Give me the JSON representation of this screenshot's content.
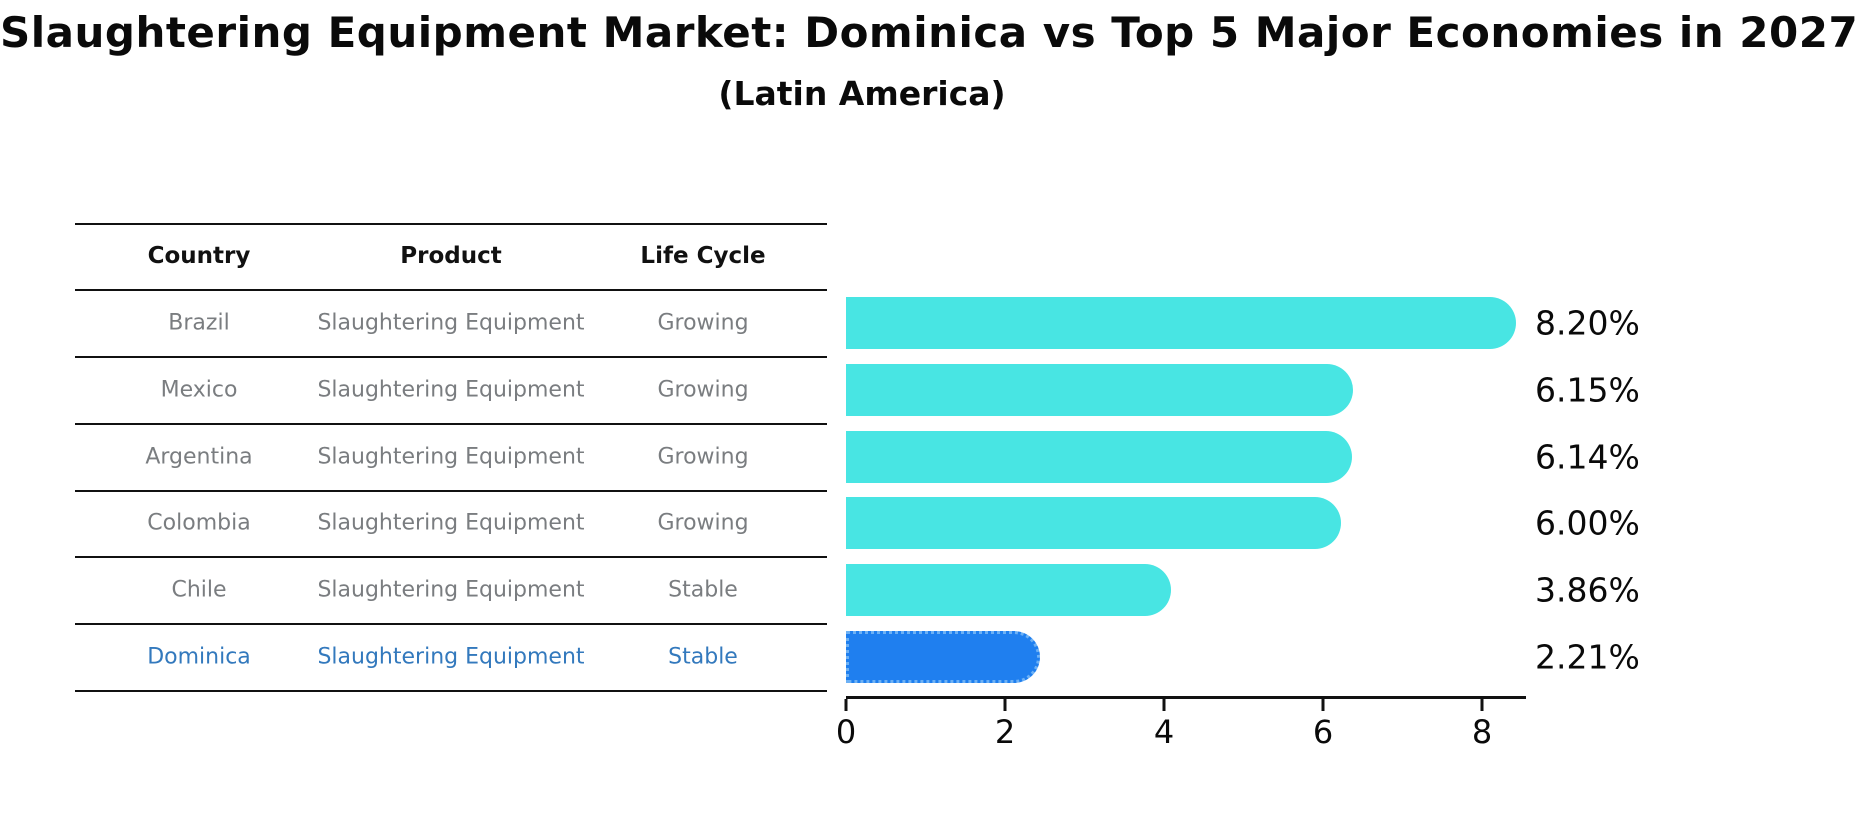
{
  "title": "Slaughtering Equipment Market: Dominica vs Top 5 Major Economies in 2027",
  "subtitle": "(Latin America)",
  "colors": {
    "bar": "#48e5e3",
    "highlight_bar": "#1f7fef",
    "highlight_border": "#6db1f5",
    "highlight_text": "#3379bd",
    "table_text": "#7a7d80",
    "header_text": "#111111",
    "axis": "#111111"
  },
  "table": {
    "columns": [
      "Country",
      "Product",
      "Life Cycle"
    ],
    "rows": [
      {
        "country": "Brazil",
        "product": "Slaughtering Equipment",
        "life_cycle": "Growing",
        "highlighted": false
      },
      {
        "country": "Mexico",
        "product": "Slaughtering Equipment",
        "life_cycle": "Growing",
        "highlighted": false
      },
      {
        "country": "Argentina",
        "product": "Slaughtering Equipment",
        "life_cycle": "Growing",
        "highlighted": false
      },
      {
        "country": "Colombia",
        "product": "Slaughtering Equipment",
        "life_cycle": "Growing",
        "highlighted": false
      },
      {
        "country": "Chile",
        "product": "Slaughtering Equipment",
        "life_cycle": "Stable",
        "highlighted": false
      },
      {
        "country": "Dominica",
        "product": "Slaughtering Equipment",
        "life_cycle": "Stable",
        "highlighted": true
      }
    ]
  },
  "chart_data": {
    "type": "bar",
    "orientation": "horizontal",
    "title": "Slaughtering Equipment Market: Dominica vs Top 5 Major Economies in 2027 (Latin America)",
    "categories": [
      "Brazil",
      "Mexico",
      "Argentina",
      "Colombia",
      "Chile",
      "Dominica"
    ],
    "values": [
      8.2,
      6.15,
      6.14,
      6.0,
      3.86,
      2.21
    ],
    "value_labels": [
      "8.20%",
      "6.15%",
      "6.14%",
      "6.00%",
      "3.86%",
      "2.21%"
    ],
    "xlabel": "",
    "ylabel": "",
    "xlim": [
      0,
      8.55
    ],
    "xticks": [
      0,
      2,
      4,
      6,
      8
    ],
    "grid": false,
    "legend": false,
    "highlight_index": 5
  }
}
